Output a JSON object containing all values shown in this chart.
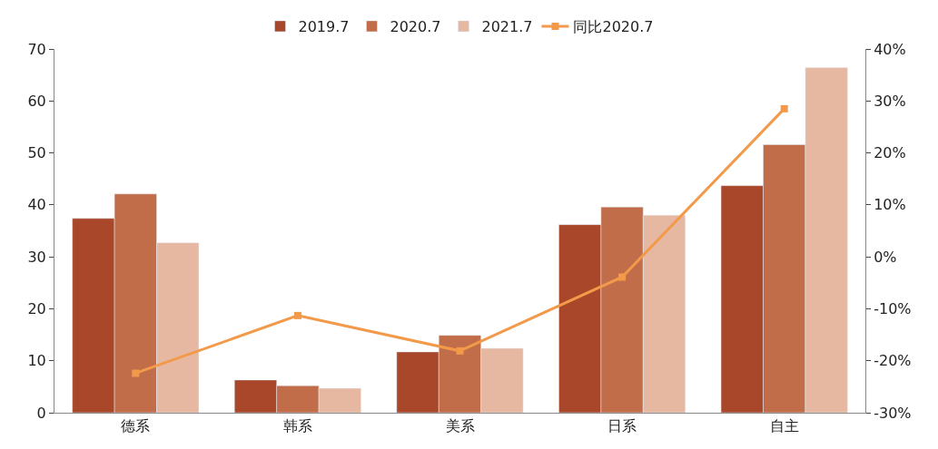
{
  "chart_data": {
    "type": "bar",
    "categories": [
      "德系",
      "韩系",
      "美系",
      "日系",
      "自主"
    ],
    "series": [
      {
        "name": "2019.7",
        "color": "#a8472a",
        "values": [
          37.4,
          6.3,
          11.7,
          36.2,
          43.7
        ]
      },
      {
        "name": "2020.7",
        "color": "#c26d4a",
        "values": [
          42.1,
          5.2,
          14.9,
          39.6,
          51.6
        ]
      },
      {
        "name": "2021.7",
        "color": "#e6b8a2",
        "values": [
          32.7,
          4.7,
          12.4,
          38.0,
          66.4
        ]
      },
      {
        "name": "同比2020.7",
        "type": "line",
        "axis": "y2",
        "color": "#f29a4a",
        "values": [
          -22.4,
          -11.3,
          -18.1,
          -3.9,
          28.5
        ]
      }
    ],
    "ylim": [
      0,
      70
    ],
    "yticks": [
      0,
      10,
      20,
      30,
      40,
      50,
      60,
      70
    ],
    "y2lim": [
      -30,
      40
    ],
    "y2ticks": [
      {
        "value": -30,
        "label": "-30%"
      },
      {
        "value": -20,
        "label": "-20%"
      },
      {
        "value": -10,
        "label": "-10%"
      },
      {
        "value": 0,
        "label": "0%"
      },
      {
        "value": 10,
        "label": "10%"
      },
      {
        "value": 20,
        "label": "20%"
      },
      {
        "value": 30,
        "label": "30%"
      },
      {
        "value": 40,
        "label": "40%"
      }
    ],
    "legend": "top",
    "marker": "square",
    "line_style": "solid"
  }
}
